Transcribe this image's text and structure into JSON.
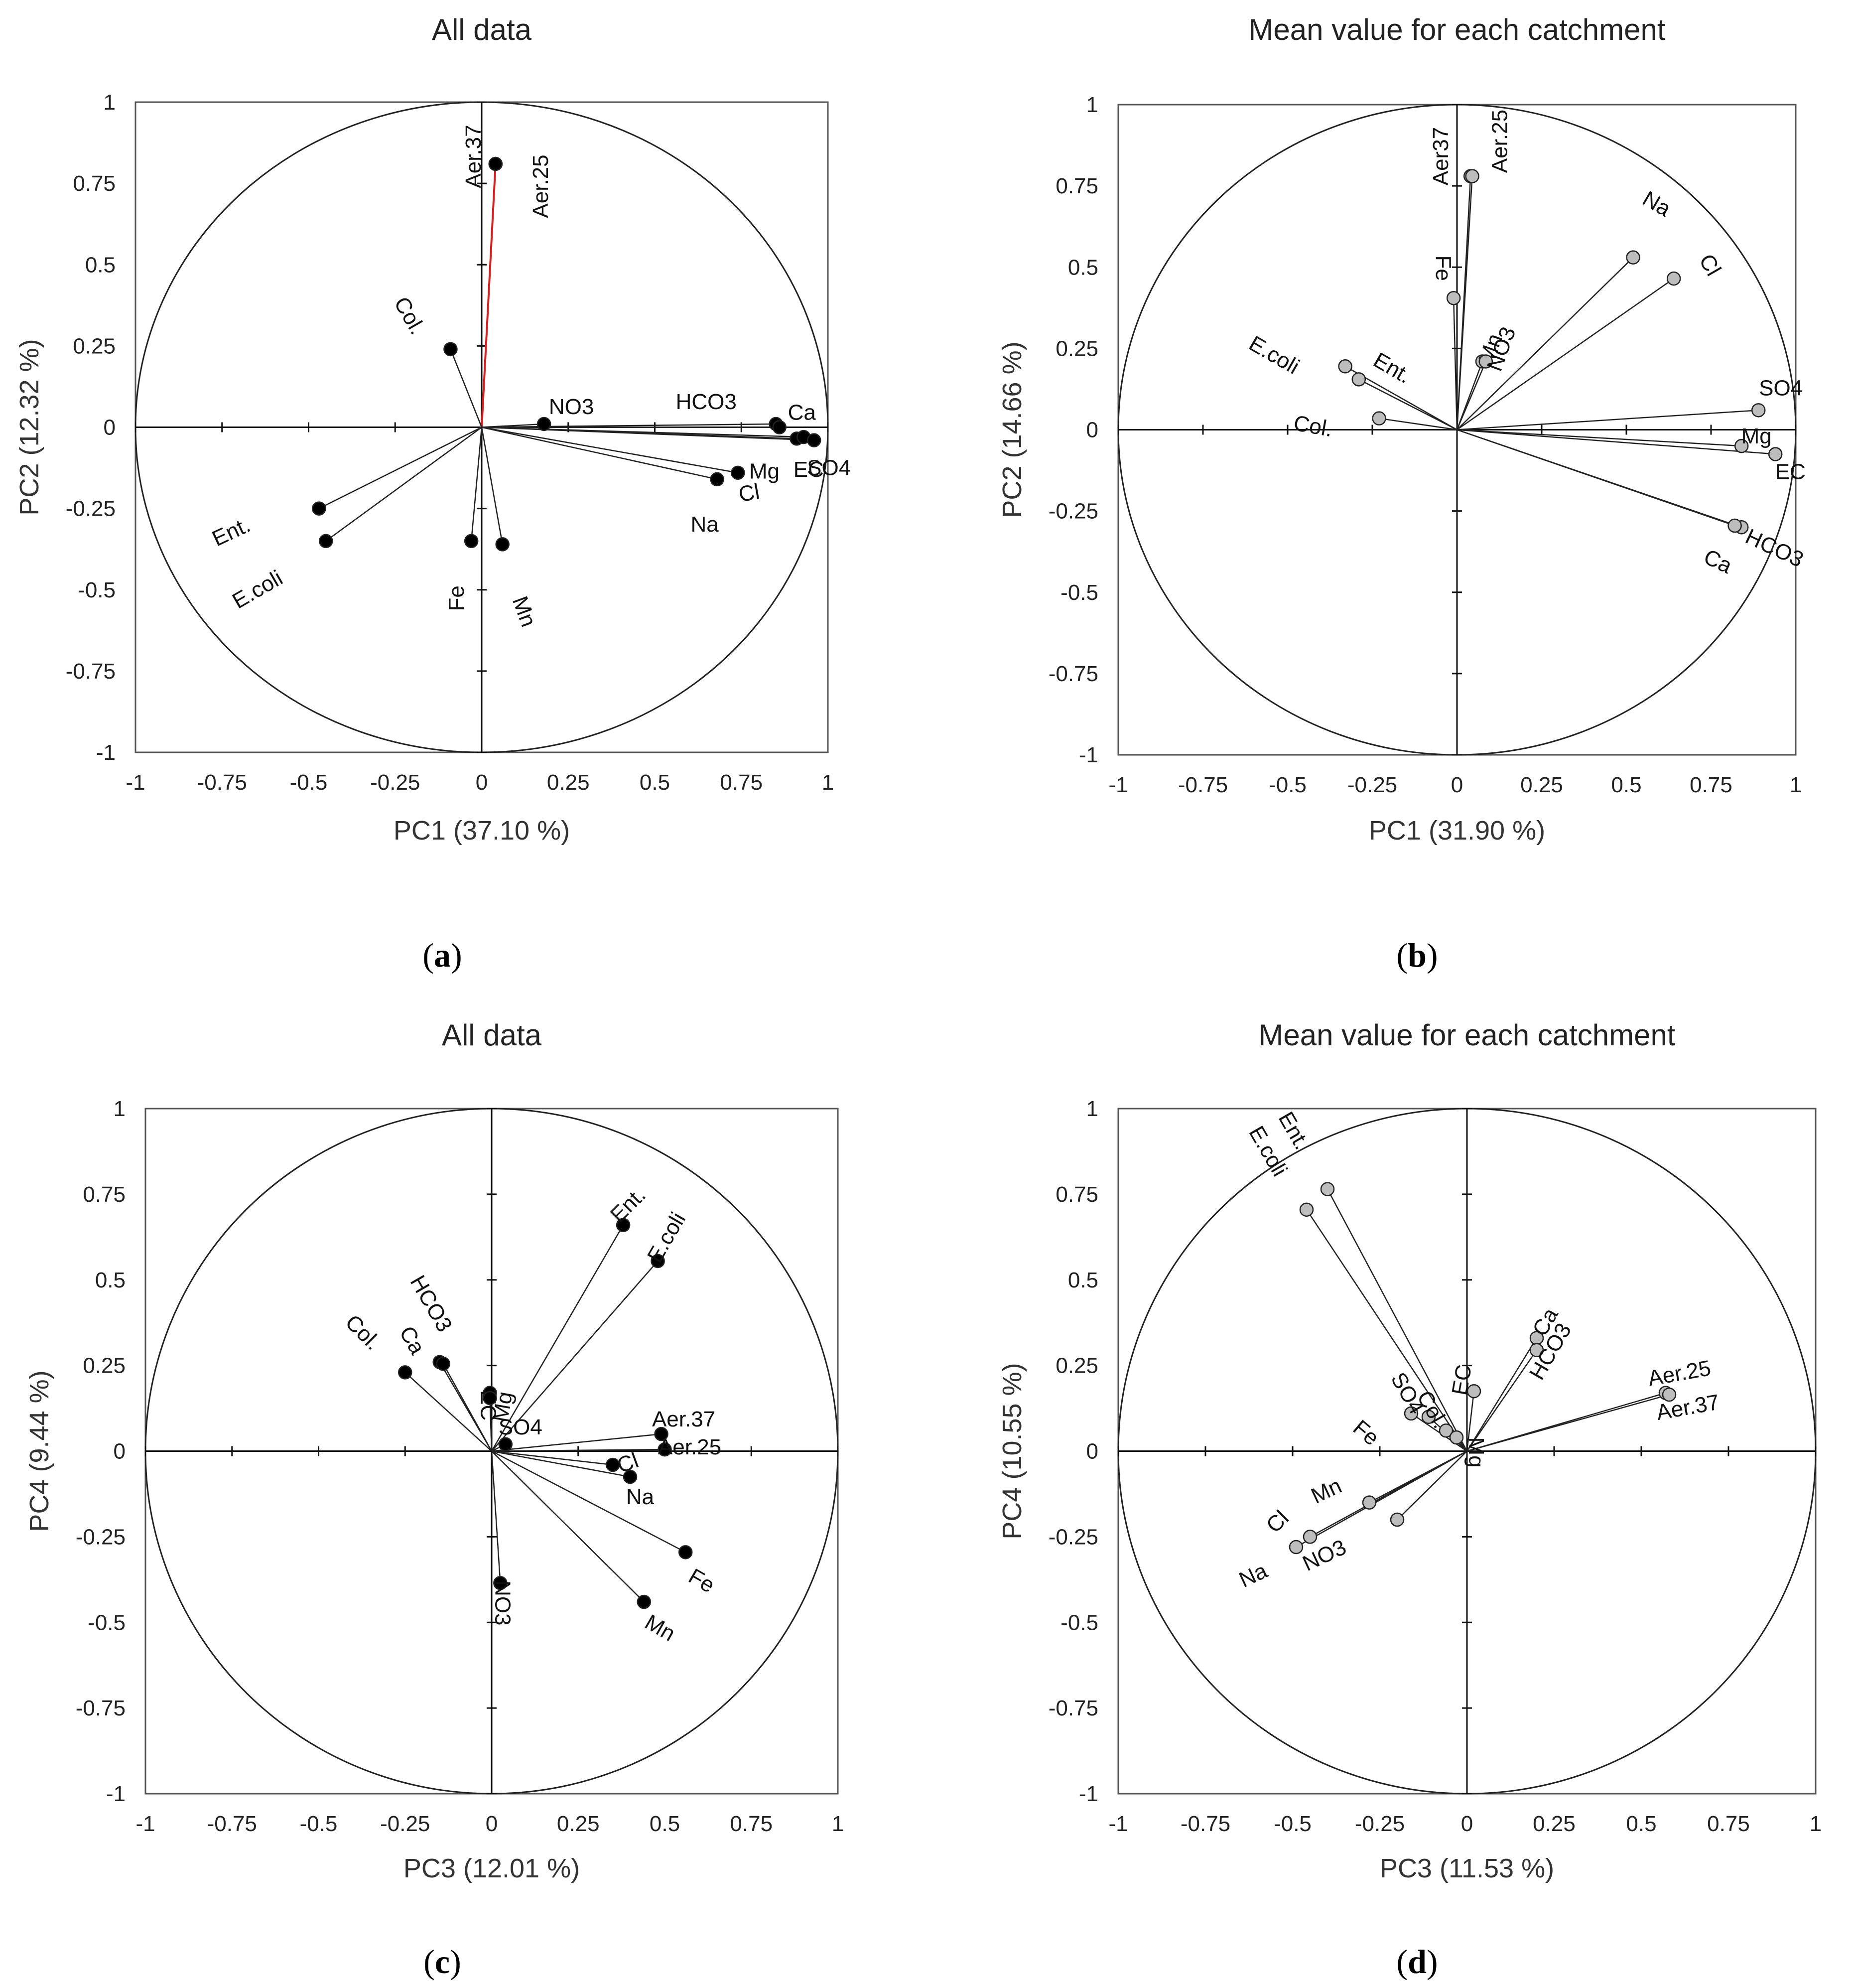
{
  "chart_data": [
    {
      "type": "scatter",
      "panel": "a",
      "caption": "a",
      "title": "All data",
      "xlabel": "PC1 (37.10 %)",
      "ylabel": "PC2 (12.32 %)",
      "xlim": [
        -1,
        1
      ],
      "ylim": [
        -1,
        1
      ],
      "xticks": [
        -1,
        -0.75,
        -0.5,
        -0.25,
        0,
        0.25,
        0.5,
        0.75,
        1
      ],
      "yticks": [
        -1,
        -0.75,
        -0.5,
        -0.25,
        0,
        0.25,
        0.5,
        0.75,
        1
      ],
      "marker_color": "#000000",
      "highlight_color": "#d42020",
      "points": [
        {
          "name": "Aer.37",
          "x": 0.04,
          "y": 0.81,
          "highlight": false
        },
        {
          "name": "Aer.25",
          "x": 0.04,
          "y": 0.81,
          "highlight": true
        },
        {
          "name": "Col.",
          "x": -0.09,
          "y": 0.24
        },
        {
          "name": "NO3",
          "x": 0.18,
          "y": 0.01
        },
        {
          "name": "HCO3",
          "x": 0.85,
          "y": 0.01
        },
        {
          "name": "Ca",
          "x": 0.86,
          "y": 0.0
        },
        {
          "name": "Mg",
          "x": 0.91,
          "y": -0.035
        },
        {
          "name": "EC",
          "x": 0.93,
          "y": -0.03
        },
        {
          "name": "SO4",
          "x": 0.96,
          "y": -0.04
        },
        {
          "name": "Cl",
          "x": 0.74,
          "y": -0.14
        },
        {
          "name": "Na",
          "x": 0.68,
          "y": -0.16
        },
        {
          "name": "Ent.",
          "x": -0.47,
          "y": -0.25
        },
        {
          "name": "E.coli",
          "x": -0.45,
          "y": -0.35
        },
        {
          "name": "Fe",
          "x": -0.03,
          "y": -0.35
        },
        {
          "name": "Mn",
          "x": 0.06,
          "y": -0.36
        }
      ]
    },
    {
      "type": "scatter",
      "panel": "b",
      "caption": "b",
      "title": "Mean value for each catchment",
      "xlabel": "PC1 (31.90 %)",
      "ylabel": "PC2 (14.66 %)",
      "xlim": [
        -1,
        1
      ],
      "ylim": [
        -1,
        1
      ],
      "xticks": [
        -1,
        -0.75,
        -0.5,
        -0.25,
        0,
        0.25,
        0.5,
        0.75,
        1
      ],
      "yticks": [
        -1,
        -0.75,
        -0.5,
        -0.25,
        0,
        0.25,
        0.5,
        0.75,
        1
      ],
      "marker_color": "#bdbdbd",
      "points": [
        {
          "name": "Aer37",
          "x": 0.04,
          "y": 0.78
        },
        {
          "name": "Aer.25",
          "x": 0.045,
          "y": 0.78
        },
        {
          "name": "Fe",
          "x": -0.01,
          "y": 0.405
        },
        {
          "name": "Mn",
          "x": 0.075,
          "y": 0.21
        },
        {
          "name": "NO3",
          "x": 0.085,
          "y": 0.21
        },
        {
          "name": "Na",
          "x": 0.52,
          "y": 0.53
        },
        {
          "name": "Cl",
          "x": 0.64,
          "y": 0.465
        },
        {
          "name": "E.coli",
          "x": -0.33,
          "y": 0.195
        },
        {
          "name": "Ent.",
          "x": -0.29,
          "y": 0.155
        },
        {
          "name": "Col.",
          "x": -0.23,
          "y": 0.035
        },
        {
          "name": "SO4",
          "x": 0.89,
          "y": 0.06
        },
        {
          "name": "Mg",
          "x": 0.84,
          "y": -0.05
        },
        {
          "name": "EC",
          "x": 0.94,
          "y": -0.075
        },
        {
          "name": "HCO3",
          "x": 0.84,
          "y": -0.3
        },
        {
          "name": "Ca",
          "x": 0.82,
          "y": -0.295
        }
      ]
    },
    {
      "type": "scatter",
      "panel": "c",
      "caption": "c",
      "title": "All data",
      "xlabel": "PC3 (12.01 %)",
      "ylabel": "PC4 (9.44 %)",
      "xlim": [
        -1,
        1
      ],
      "ylim": [
        -1,
        1
      ],
      "xticks": [
        -1,
        -0.75,
        -0.5,
        -0.25,
        0,
        0.25,
        0.5,
        0.75,
        1
      ],
      "yticks": [
        -1,
        -0.75,
        -0.5,
        -0.25,
        0,
        0.25,
        0.5,
        0.75,
        1
      ],
      "marker_color": "#000000",
      "points": [
        {
          "name": "Ent.",
          "x": 0.38,
          "y": 0.66
        },
        {
          "name": "E.coli",
          "x": 0.48,
          "y": 0.555
        },
        {
          "name": "HCO3",
          "x": -0.15,
          "y": 0.26
        },
        {
          "name": "Ca",
          "x": -0.14,
          "y": 0.255
        },
        {
          "name": "Col.",
          "x": -0.25,
          "y": 0.23
        },
        {
          "name": "EC",
          "x": -0.005,
          "y": 0.17
        },
        {
          "name": "Mg",
          "x": -0.005,
          "y": 0.155
        },
        {
          "name": "SO4",
          "x": 0.04,
          "y": 0.02
        },
        {
          "name": "Aer.37",
          "x": 0.49,
          "y": 0.05
        },
        {
          "name": "Aer.25",
          "x": 0.5,
          "y": 0.005
        },
        {
          "name": "Cl",
          "x": 0.35,
          "y": -0.04
        },
        {
          "name": "Na",
          "x": 0.4,
          "y": -0.075
        },
        {
          "name": "Fe",
          "x": 0.56,
          "y": -0.295
        },
        {
          "name": "Mn",
          "x": 0.44,
          "y": -0.44
        },
        {
          "name": "NO3",
          "x": 0.025,
          "y": -0.385
        }
      ]
    },
    {
      "type": "scatter",
      "panel": "d",
      "caption": "d",
      "title": "Mean value for each catchment",
      "xlabel": "PC3 (11.53 %)",
      "ylabel": "PC4 (10.55 %)",
      "xlim": [
        -1,
        1
      ],
      "ylim": [
        -1,
        1
      ],
      "xticks": [
        -1,
        -0.75,
        -0.5,
        -0.25,
        0,
        0.25,
        0.5,
        0.75,
        1
      ],
      "yticks": [
        -1,
        -0.75,
        -0.5,
        -0.25,
        0,
        0.25,
        0.5,
        0.75,
        1
      ],
      "marker_color": "#bdbdbd",
      "points": [
        {
          "name": "Ent.",
          "x": -0.4,
          "y": 0.765
        },
        {
          "name": "E.coli",
          "x": -0.46,
          "y": 0.705
        },
        {
          "name": "Ca",
          "x": 0.2,
          "y": 0.33
        },
        {
          "name": "HCO3",
          "x": 0.2,
          "y": 0.295
        },
        {
          "name": "EC",
          "x": 0.02,
          "y": 0.175
        },
        {
          "name": "Aer.25",
          "x": 0.57,
          "y": 0.17
        },
        {
          "name": "Aer.37",
          "x": 0.58,
          "y": 0.165
        },
        {
          "name": "Fe",
          "x": -0.16,
          "y": 0.11
        },
        {
          "name": "SO4",
          "x": -0.11,
          "y": 0.1
        },
        {
          "name": "Col.",
          "x": -0.06,
          "y": 0.06
        },
        {
          "name": "Mg",
          "x": -0.03,
          "y": 0.04
        },
        {
          "name": "Mn",
          "x": -0.28,
          "y": -0.15
        },
        {
          "name": "NO3",
          "x": -0.2,
          "y": -0.2
        },
        {
          "name": "Cl",
          "x": -0.45,
          "y": -0.25
        },
        {
          "name": "Na",
          "x": -0.49,
          "y": -0.28
        }
      ]
    }
  ]
}
